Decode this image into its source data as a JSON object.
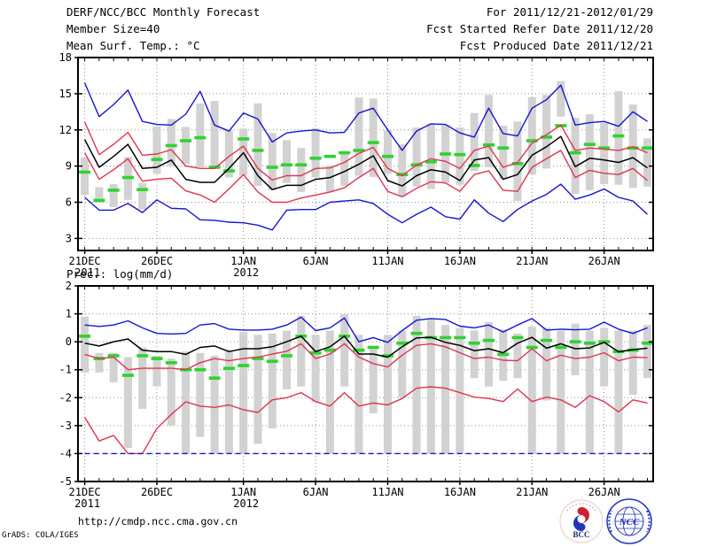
{
  "header": {
    "title": "DERF/NCC/BCC Monthly Forecast",
    "member_size": "Member Size=40",
    "temp_label": "Mean Surf. Temp.: °C",
    "for_range": "For 2011/12/21-2012/01/29",
    "refer_date": "Fcst Started Refer Date 2011/12/20",
    "produced_date": "Fcst Produced Date 2011/12/21"
  },
  "prec_label": "Prec.: log(mm/d)",
  "footer": {
    "url": "http://cmdp.ncc.cma.gov.cn",
    "credit": "GrADS: COLA/IGES",
    "logo_bcc": "BCC",
    "logo_ncc": "NCC"
  },
  "colors": {
    "blue": "#1515d0",
    "red": "#e0344f",
    "black": "#000000",
    "green": "#2fd32f",
    "bar": "#d2d2d2",
    "grid": "#909090",
    "frame": "#000000"
  },
  "chart_data": [
    {
      "type": "line",
      "title": "Mean Surf. Temp.: °C",
      "days": 40,
      "ylim": [
        2,
        18
      ],
      "yticks": [
        18,
        15,
        12,
        9,
        6,
        3
      ],
      "grid": true,
      "x_ticks": [
        {
          "label": "21DEC",
          "day": 1,
          "year": "2011"
        },
        {
          "label": "26DEC",
          "day": 6
        },
        {
          "label": "1JAN",
          "day": 12,
          "year": "2012"
        },
        {
          "label": "6JAN",
          "day": 17
        },
        {
          "label": "11JAN",
          "day": 22
        },
        {
          "label": "16JAN",
          "day": 27
        },
        {
          "label": "21JAN",
          "day": 32
        },
        {
          "label": "26JAN",
          "day": 37
        }
      ],
      "series": [
        {
          "name": "ensemble-max",
          "color": "blue",
          "style": "line",
          "values": [
            15.9,
            13.1,
            14.1,
            15.3,
            12.7,
            12.45,
            12.4,
            13.3,
            15.2,
            12.4,
            11.9,
            13.4,
            12.9,
            11,
            11.75,
            11.9,
            12,
            11.75,
            11.8,
            13.4,
            13.8,
            12,
            10.3,
            11.9,
            12.5,
            12.45,
            11.75,
            11.4,
            13.8,
            11.7,
            11.5,
            13.8,
            14.5,
            15.7,
            12.4,
            12.6,
            12.7,
            12.3,
            13.5,
            12.7
          ]
        },
        {
          "name": "upper-bound",
          "color": "red",
          "style": "line",
          "values": [
            12.65,
            9.95,
            10.8,
            11.8,
            9.9,
            10,
            10.35,
            9,
            8.8,
            8.8,
            9.8,
            10.65,
            8.8,
            7.85,
            8.2,
            8.2,
            8.8,
            8.85,
            9.3,
            10.05,
            10.55,
            8.8,
            8.2,
            9.1,
            9.6,
            9.4,
            8.8,
            10.3,
            10.65,
            8.9,
            9.3,
            10.9,
            11.6,
            12.4,
            10.3,
            10.5,
            10.4,
            10.3,
            10.6,
            10.1
          ]
        },
        {
          "name": "ensemble-mean",
          "color": "black",
          "style": "line",
          "values": [
            11.2,
            8.9,
            9.8,
            10.8,
            8.8,
            8.9,
            9.5,
            7.9,
            7.65,
            7.65,
            8.8,
            10.1,
            8.2,
            7.05,
            7.4,
            7.4,
            7.9,
            8.05,
            8.55,
            9.15,
            9.85,
            7.8,
            7.35,
            8.2,
            8.7,
            8.5,
            7.8,
            9.5,
            9.7,
            7.9,
            8.3,
            9.9,
            10.6,
            11.45,
            8.95,
            9.65,
            9.5,
            9.3,
            9.7,
            8.85
          ]
        },
        {
          "name": "lower-bound",
          "color": "red",
          "style": "line",
          "values": [
            10.1,
            7.9,
            8.7,
            9.6,
            7.75,
            7.9,
            8,
            6.95,
            6.6,
            6,
            7.1,
            8.3,
            6.85,
            6,
            6,
            6.35,
            6.6,
            6.85,
            7.2,
            8.05,
            8.8,
            6.9,
            6.45,
            7.15,
            7.7,
            7.6,
            6.9,
            8.3,
            8.6,
            7,
            6.9,
            8.9,
            9.6,
            10.3,
            8.05,
            8.65,
            8.4,
            8.3,
            8.8,
            7.8
          ]
        },
        {
          "name": "ensemble-min",
          "color": "blue",
          "style": "line",
          "values": [
            6.4,
            5.35,
            5.35,
            5.9,
            5.15,
            6.2,
            5.5,
            5.45,
            4.55,
            4.5,
            4.35,
            4.3,
            4.1,
            3.7,
            5.35,
            5.4,
            5.4,
            6,
            6.1,
            6.2,
            5.9,
            5,
            4.3,
            5,
            5.6,
            4.8,
            4.6,
            6.2,
            5.1,
            4.4,
            5.4,
            6.1,
            6.65,
            7.5,
            6.25,
            6.6,
            7.1,
            6.4,
            6.1,
            5
          ]
        },
        {
          "name": "observation",
          "color": "green",
          "style": "tick",
          "values": [
            8.5,
            6.15,
            7,
            8.05,
            7.05,
            9.55,
            10.7,
            11.1,
            11.35,
            8.9,
            8.6,
            11.25,
            10.3,
            8.9,
            9.1,
            9.1,
            9.65,
            9.8,
            10.1,
            10.3,
            10.95,
            9.8,
            8.3,
            9.1,
            9.35,
            10,
            9.95,
            9.05,
            10.75,
            10.5,
            9.2,
            11.1,
            11.4,
            12.35,
            10.1,
            10.8,
            10.5,
            11.5,
            10.5,
            10.5
          ]
        }
      ],
      "range_bars": {
        "color": "bar",
        "high": [
          9.7,
          7.25,
          7.5,
          9.75,
          7.6,
          12.3,
          12.9,
          12.25,
          14.2,
          14.4,
          12,
          12.1,
          14.2,
          11.75,
          11.15,
          10.5,
          12.15,
          9.05,
          10.15,
          14.7,
          14.6,
          12,
          10.8,
          12.2,
          12.5,
          12.4,
          12.2,
          13.4,
          14.9,
          12.35,
          12.7,
          14.7,
          14.9,
          16.05,
          13,
          13.3,
          12.6,
          15.2,
          14.1,
          11.3
        ],
        "low": [
          6.6,
          6,
          5.6,
          6.2,
          5.4,
          8.35,
          9,
          9.2,
          8.9,
          8.75,
          8.05,
          8.2,
          7.35,
          7,
          7.6,
          6.85,
          8.05,
          6.85,
          7.35,
          8.2,
          8.1,
          8.35,
          6.5,
          7.3,
          7.1,
          7.6,
          7.45,
          8.6,
          8.9,
          7.9,
          6.1,
          8.3,
          8.8,
          13.1,
          6.7,
          7,
          7.5,
          7.45,
          7.2,
          7.3
        ]
      }
    },
    {
      "type": "line",
      "title": "Prec.: log(mm/d)",
      "days": 40,
      "ylim": [
        -5,
        2
      ],
      "yticks": [
        2,
        1,
        0,
        -1,
        -2,
        -3,
        -4,
        -5
      ],
      "grid": true,
      "x_ticks": [
        {
          "label": "21DEC",
          "day": 1,
          "year": "2011"
        },
        {
          "label": "26DEC",
          "day": 6
        },
        {
          "label": "1JAN",
          "day": 12,
          "year": "2012"
        },
        {
          "label": "6JAN",
          "day": 17
        },
        {
          "label": "11JAN",
          "day": 22
        },
        {
          "label": "16JAN",
          "day": 27
        },
        {
          "label": "21JAN",
          "day": 32
        },
        {
          "label": "26JAN",
          "day": 37
        }
      ],
      "series": [
        {
          "name": "ensemble-max",
          "color": "blue",
          "style": "line",
          "values": [
            0.6,
            0.55,
            0.6,
            0.75,
            0.5,
            0.3,
            0.28,
            0.3,
            0.6,
            0.65,
            0.45,
            0.42,
            0.42,
            0.45,
            0.6,
            0.88,
            0.4,
            0.5,
            0.85,
            0,
            0.15,
            -0.02,
            0.4,
            0.77,
            0.83,
            0.8,
            0.56,
            0.5,
            0.6,
            0.35,
            0.6,
            0.83,
            0.42,
            0.45,
            0.43,
            0.45,
            0.7,
            0.45,
            0.3,
            0.5
          ]
        },
        {
          "name": "ensemble-mean",
          "color": "black",
          "style": "line",
          "values": [
            -0.05,
            -0.15,
            0,
            0.1,
            -0.3,
            -0.35,
            -0.35,
            -0.45,
            -0.2,
            -0.15,
            -0.35,
            -0.25,
            -0.25,
            -0.18,
            0,
            0.2,
            -0.35,
            -0.18,
            0.2,
            -0.44,
            -0.44,
            -0.55,
            -0.18,
            0.14,
            0.16,
            -0.02,
            -0.13,
            -0.32,
            -0.25,
            -0.39,
            -0.05,
            0.16,
            -0.23,
            -0.07,
            -0.25,
            -0.22,
            -0.02,
            -0.36,
            -0.28,
            -0.23
          ]
        },
        {
          "name": "upper-bound",
          "color": "red",
          "style": "line",
          "values": [
            -0.45,
            -0.6,
            -0.55,
            -1,
            -0.95,
            -0.95,
            -0.95,
            -1,
            -0.75,
            -0.6,
            -0.68,
            -0.6,
            -0.55,
            -0.44,
            -0.34,
            -0.07,
            -0.6,
            -0.44,
            -0.07,
            -0.55,
            -0.78,
            -0.9,
            -0.48,
            -0.13,
            -0.07,
            -0.18,
            -0.39,
            -0.6,
            -0.55,
            -0.66,
            -0.68,
            -0.25,
            -0.68,
            -0.48,
            -0.6,
            -0.55,
            -0.39,
            -0.68,
            -0.55,
            -0.57
          ]
        },
        {
          "name": "lower-bound",
          "color": "red",
          "style": "line",
          "values": [
            -2.7,
            -3.55,
            -3.35,
            -4,
            -4,
            -3.1,
            -2.6,
            -2.15,
            -2.3,
            -2.35,
            -2.26,
            -2.43,
            -2.53,
            -2.08,
            -2,
            -1.82,
            -2.14,
            -2.3,
            -1.82,
            -2.3,
            -2.19,
            -2.26,
            -2.03,
            -1.66,
            -1.61,
            -1.66,
            -1.82,
            -1.98,
            -2.03,
            -2.14,
            -1.69,
            -2.14,
            -1.98,
            -2.08,
            -2.35,
            -1.93,
            -2.14,
            -2.51,
            -2.08,
            -2.19
          ]
        },
        {
          "name": "ensemble-min",
          "color": "blue",
          "style": "dashed-line",
          "values": [
            -4,
            -4,
            -4,
            -4,
            -4,
            -4,
            -4,
            -4,
            -4,
            -4,
            -4,
            -4,
            -4,
            -4,
            -4,
            -4,
            -4,
            -4,
            -4,
            -4,
            -4,
            -4,
            -4,
            -4,
            -4,
            -4,
            -4,
            -4,
            -4,
            -4,
            -4,
            -4,
            -4,
            -4,
            -4,
            -4,
            -4,
            -4,
            -4,
            -4
          ]
        },
        {
          "name": "observation",
          "color": "green",
          "style": "tick",
          "values": [
            0.2,
            -0.6,
            -0.5,
            -1.2,
            -0.5,
            -0.6,
            -0.75,
            -1,
            -1,
            -1.3,
            -0.95,
            -0.85,
            -0.6,
            -0.7,
            -0.5,
            0.2,
            -0.4,
            -0.3,
            0.2,
            -0.3,
            -0.2,
            -0.5,
            -0.05,
            0.3,
            0.15,
            0.15,
            0.15,
            -0.05,
            0.05,
            -0.45,
            0.15,
            -0.2,
            0.05,
            -0.2,
            0,
            -0.05,
            0,
            -0.35,
            -0.3,
            -0.05
          ]
        }
      ],
      "range_bars": {
        "color": "bar",
        "high": [
          0.9,
          -0.4,
          -0.4,
          -0.55,
          -0.2,
          -0.5,
          -0.6,
          -0.35,
          -0.4,
          -0.5,
          -0.3,
          0.35,
          0.25,
          0.3,
          0.4,
          0.93,
          0.25,
          0.4,
          0.98,
          0.25,
          -0.18,
          0.25,
          0.4,
          0.93,
          0.83,
          0.6,
          0.5,
          0.4,
          0.7,
          0.45,
          0.3,
          0.55,
          0.5,
          0.4,
          0.65,
          0.4,
          0.5,
          0.4,
          0.4,
          0.6
        ],
        "low": [
          -1.1,
          -1.1,
          -1.45,
          -3.8,
          -2.4,
          -1.6,
          -3,
          -4,
          -3.4,
          -4,
          -4,
          -4,
          -3.65,
          -3.1,
          -1.7,
          -1.6,
          -2.15,
          -4,
          -1.6,
          -4,
          -2.56,
          -4,
          -2,
          -4,
          -4,
          -4,
          -4,
          -1.3,
          -1.6,
          -1.4,
          -1.3,
          -4,
          -2.1,
          -4,
          -1.2,
          -4,
          -1.6,
          -4,
          -1.9,
          -1.3
        ]
      }
    }
  ]
}
